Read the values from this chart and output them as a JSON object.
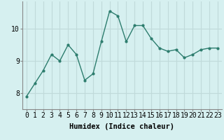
{
  "x": [
    0,
    1,
    2,
    3,
    4,
    5,
    6,
    7,
    8,
    9,
    10,
    11,
    12,
    13,
    14,
    15,
    16,
    17,
    18,
    19,
    20,
    21,
    22,
    23
  ],
  "y": [
    7.9,
    8.3,
    8.7,
    9.2,
    9.0,
    9.5,
    9.2,
    8.4,
    8.6,
    9.6,
    10.55,
    10.4,
    9.6,
    10.1,
    10.1,
    9.7,
    9.4,
    9.3,
    9.35,
    9.1,
    9.2,
    9.35,
    9.4,
    9.4
  ],
  "line_color": "#2d7d6e",
  "marker": ".",
  "marker_size": 4,
  "background_color": "#d6f0f0",
  "grid_color": "#c0dada",
  "xlabel": "Humidex (Indice chaleur)",
  "ylabel_ticks": [
    8,
    9,
    10
  ],
  "ylim": [
    7.5,
    10.85
  ],
  "xlim": [
    -0.5,
    23.5
  ],
  "xlabel_fontsize": 7.5,
  "tick_fontsize": 7,
  "linewidth": 1.0
}
